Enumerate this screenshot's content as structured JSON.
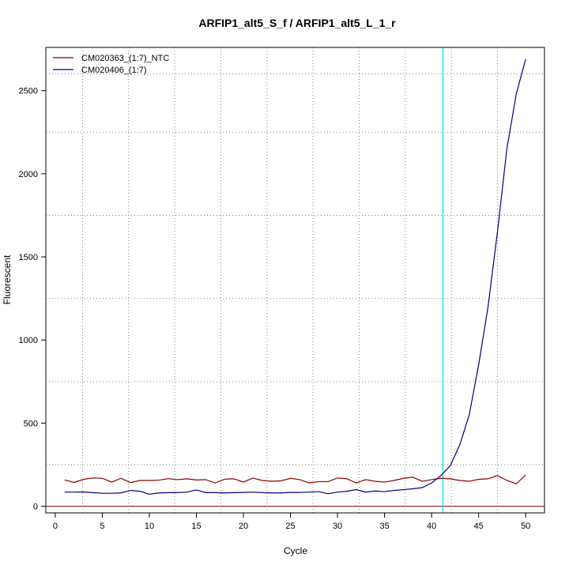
{
  "chart_data": {
    "type": "line",
    "title": "ARFIP1_alt5_S_f / ARFIP1_alt5_L_1_r",
    "xlabel": "Cycle",
    "ylabel": "Fluorescent",
    "xlim": [
      -1,
      52
    ],
    "ylim": [
      -40,
      2760
    ],
    "x_ticks": [
      0,
      5,
      10,
      15,
      20,
      25,
      30,
      35,
      40,
      45,
      50
    ],
    "y_ticks": [
      0,
      500,
      1000,
      1500,
      2000,
      2500
    ],
    "v_grid": [
      2.9,
      7.8,
      12.7,
      17.6,
      22.5,
      27.4,
      32.3,
      37.2,
      42.1,
      47.0
    ],
    "h_grid": [
      250,
      750,
      1250,
      1750,
      2250,
      2600
    ],
    "threshold_cycle": 41.2,
    "grid": true,
    "legend_position": "top-left",
    "colors": {
      "threshold": "#00e5e5",
      "baseline": "#8b0000",
      "grid": "#808080"
    },
    "x": [
      1,
      2,
      3,
      4,
      5,
      6,
      7,
      8,
      9,
      10,
      11,
      12,
      13,
      14,
      15,
      16,
      17,
      18,
      19,
      20,
      21,
      22,
      23,
      24,
      25,
      26,
      27,
      28,
      29,
      30,
      31,
      32,
      33,
      34,
      35,
      36,
      37,
      38,
      39,
      40,
      41,
      42,
      43,
      44,
      45,
      46,
      47,
      48,
      49,
      50
    ],
    "series": [
      {
        "name": "CM020363_(1:7)_NTC",
        "color": "#8b0000",
        "values": [
          158,
          143,
          162,
          170,
          168,
          145,
          168,
          142,
          155,
          155,
          157,
          166,
          160,
          165,
          158,
          160,
          140,
          163,
          165,
          145,
          170,
          155,
          150,
          153,
          168,
          160,
          140,
          148,
          148,
          170,
          165,
          140,
          160,
          150,
          145,
          155,
          168,
          175,
          150,
          160,
          168,
          165,
          155,
          150,
          162,
          165,
          185,
          155,
          135,
          188
        ]
      },
      {
        "name": "CM020406_(1:7)",
        "color": "#000080",
        "values": [
          85,
          85,
          86,
          82,
          78,
          78,
          80,
          95,
          90,
          72,
          80,
          82,
          82,
          85,
          98,
          82,
          82,
          80,
          82,
          83,
          85,
          82,
          80,
          80,
          83,
          83,
          85,
          88,
          75,
          85,
          90,
          100,
          85,
          92,
          88,
          95,
          100,
          105,
          112,
          140,
          185,
          245,
          370,
          550,
          850,
          1200,
          1650,
          2150,
          2480,
          2690
        ]
      }
    ]
  }
}
